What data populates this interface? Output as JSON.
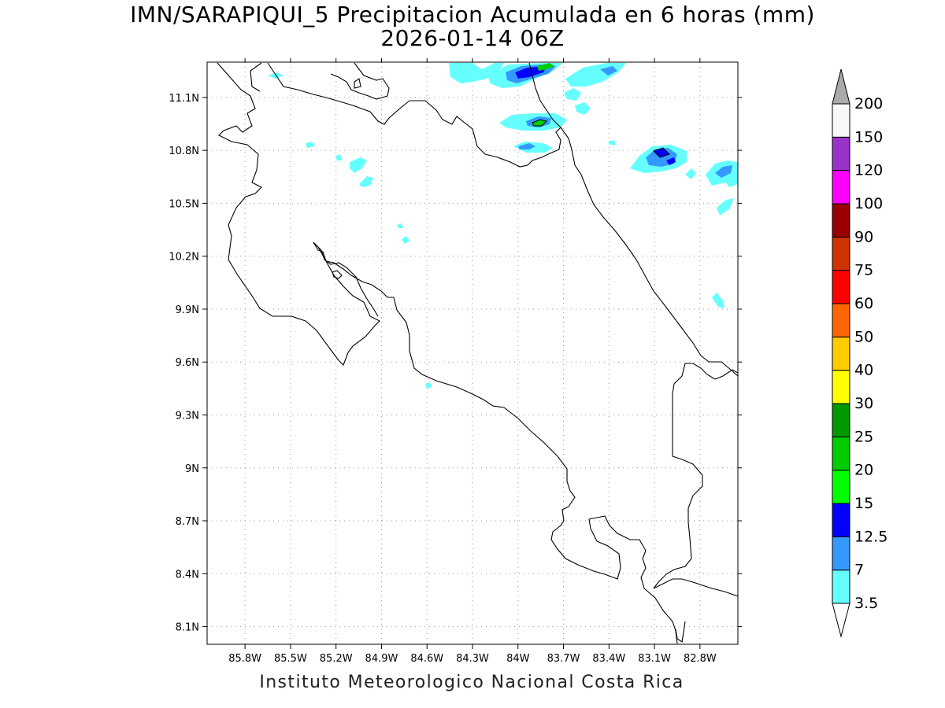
{
  "title_line1": "IMN/SARAPIQUI_5 Precipitacion Acumulada en 6 horas (mm)",
  "title_line2": "2026-01-14 06Z",
  "credit": "Instituto Meteorologico Nacional Costa Rica",
  "map": {
    "lon_range": [
      -86.05,
      -82.55
    ],
    "lat_range": [
      8.0,
      11.3
    ],
    "lon_ticks": [
      {
        "value": -85.8,
        "label": "85.8W"
      },
      {
        "value": -85.5,
        "label": "85.5W"
      },
      {
        "value": -85.2,
        "label": "85.2W"
      },
      {
        "value": -84.9,
        "label": "84.9W"
      },
      {
        "value": -84.6,
        "label": "84.6W"
      },
      {
        "value": -84.3,
        "label": "84.3W"
      },
      {
        "value": -84.0,
        "label": "84W"
      },
      {
        "value": -83.7,
        "label": "83.7W"
      },
      {
        "value": -83.4,
        "label": "83.4W"
      },
      {
        "value": -83.1,
        "label": "83.1W"
      },
      {
        "value": -82.8,
        "label": "82.8W"
      }
    ],
    "lat_ticks": [
      {
        "value": 8.1,
        "label": "8.1N"
      },
      {
        "value": 8.4,
        "label": "8.4N"
      },
      {
        "value": 8.7,
        "label": "8.7N"
      },
      {
        "value": 9.0,
        "label": "9N"
      },
      {
        "value": 9.3,
        "label": "9.3N"
      },
      {
        "value": 9.6,
        "label": "9.6N"
      },
      {
        "value": 9.9,
        "label": "9.9N"
      },
      {
        "value": 10.2,
        "label": "10.2N"
      },
      {
        "value": 10.5,
        "label": "10.5N"
      },
      {
        "value": 10.8,
        "label": "10.8N"
      },
      {
        "value": 11.1,
        "label": "11.1N"
      }
    ],
    "grid": true
  },
  "colorbar": {
    "bins": [
      {
        "label": "3.5",
        "color": "#66ffff"
      },
      {
        "label": "7",
        "color": "#3399ff"
      },
      {
        "label": "12.5",
        "color": "#0000ff"
      },
      {
        "label": "15",
        "color": "#00ff00"
      },
      {
        "label": "20",
        "color": "#00cc00"
      },
      {
        "label": "25",
        "color": "#009900"
      },
      {
        "label": "30",
        "color": "#ffff00"
      },
      {
        "label": "40",
        "color": "#ffcc00"
      },
      {
        "label": "50",
        "color": "#ff6600"
      },
      {
        "label": "60",
        "color": "#ff0000"
      },
      {
        "label": "75",
        "color": "#cc3300"
      },
      {
        "label": "90",
        "color": "#990000"
      },
      {
        "label": "100",
        "color": "#ff00ff"
      },
      {
        "label": "120",
        "color": "#9933cc"
      },
      {
        "label": "150",
        "color": "#f8f8f8"
      },
      {
        "label": "200",
        "color": "#aaaaaa"
      }
    ]
  }
}
